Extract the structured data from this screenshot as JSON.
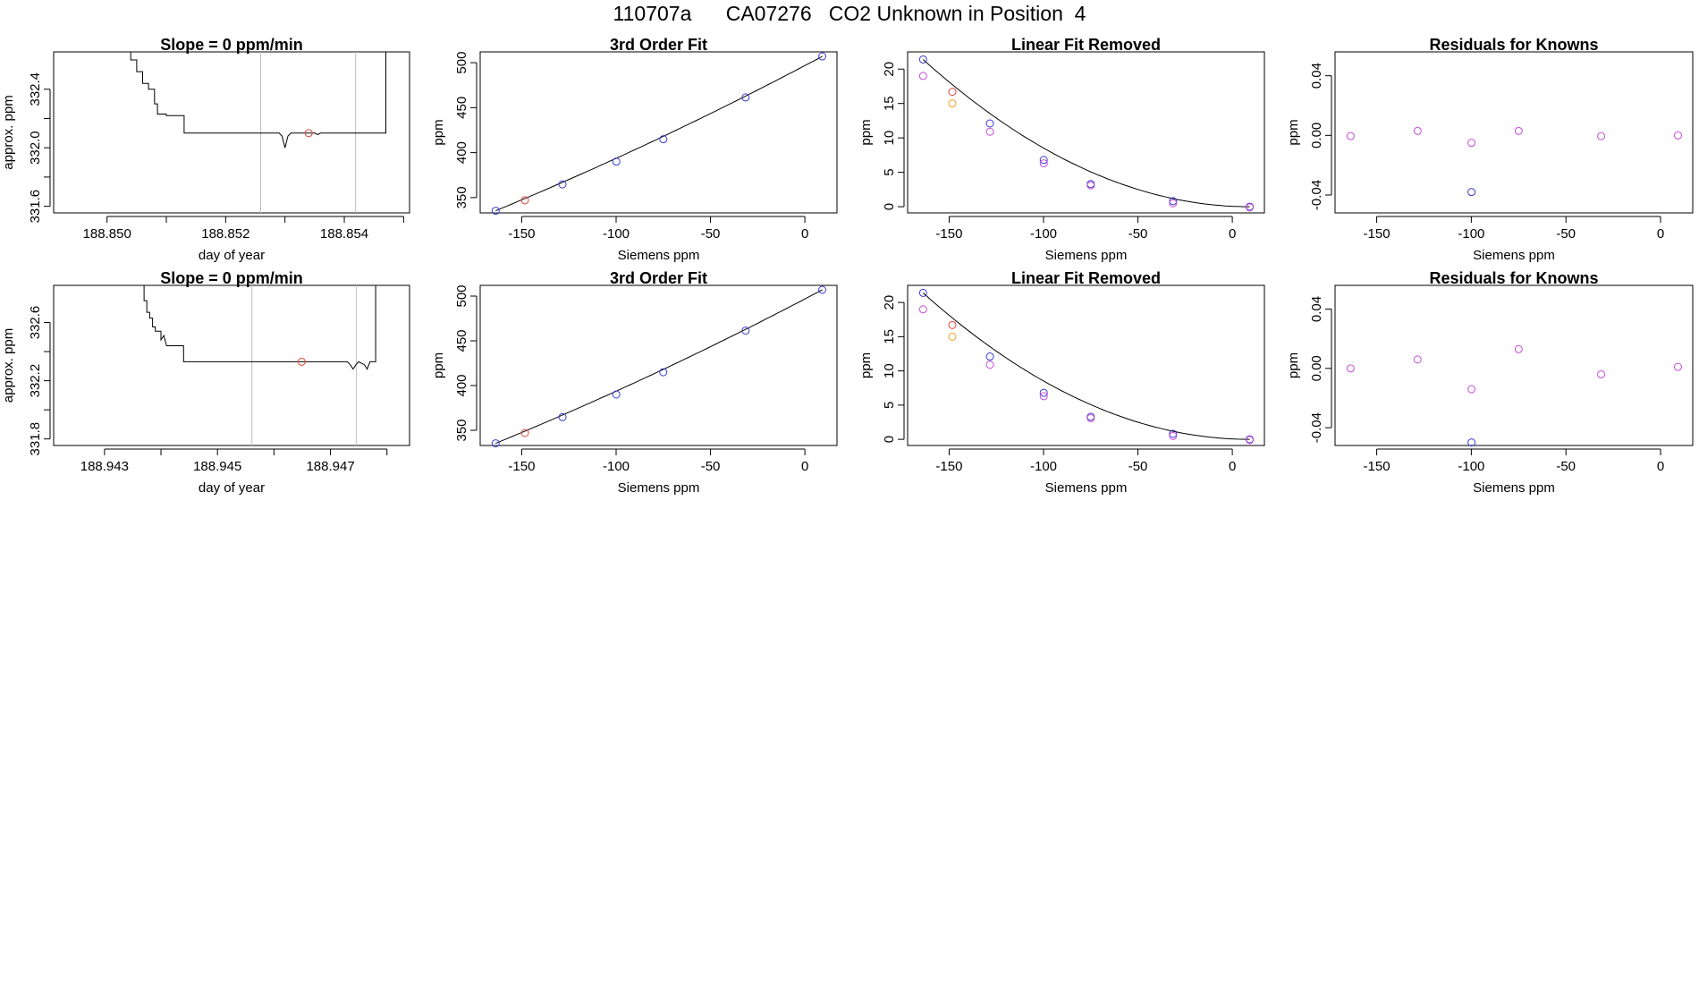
{
  "title": "110707a      CA07276   CO2 Unknown in Position  4",
  "chart_data": [
    {
      "id": "r1-timeseries",
      "type": "line",
      "title": "Slope =  0  ppm/min",
      "xlabel": "day of year",
      "ylabel": "approx. ppm",
      "xlim": [
        188.8491,
        188.8551
      ],
      "ylim": [
        331.555,
        332.655
      ],
      "xticks": [
        188.85,
        188.851,
        188.852,
        188.853,
        188.854,
        188.855
      ],
      "xtick_labels": [
        "188.850",
        "",
        "188.852",
        "",
        "188.854",
        ""
      ],
      "yticks": [
        331.6,
        331.8,
        332.0,
        332.2,
        332.4
      ],
      "ytick_labels": [
        "331.6",
        "",
        "332.0",
        "",
        "332.4"
      ],
      "vlines": [
        188.85259,
        188.85419
      ],
      "trace": [
        [
          188.8504,
          332.7
        ],
        [
          188.8504,
          332.6
        ],
        [
          188.8505,
          332.6
        ],
        [
          188.8505,
          332.52
        ],
        [
          188.8506,
          332.52
        ],
        [
          188.8506,
          332.44
        ],
        [
          188.8507,
          332.44
        ],
        [
          188.8507,
          332.4
        ],
        [
          188.8508,
          332.4
        ],
        [
          188.8508,
          332.3
        ],
        [
          188.85085,
          332.3
        ],
        [
          188.85085,
          332.23
        ],
        [
          188.851,
          332.23
        ],
        [
          188.851,
          332.22
        ],
        [
          188.8513,
          332.22
        ],
        [
          188.8513,
          332.1
        ],
        [
          188.8529,
          332.1
        ],
        [
          188.85295,
          332.08
        ],
        [
          188.853,
          332.0
        ],
        [
          188.85305,
          332.08
        ],
        [
          188.8531,
          332.1
        ],
        [
          188.8535,
          332.1
        ],
        [
          188.85355,
          332.09
        ],
        [
          188.8536,
          332.1
        ],
        [
          188.8547,
          332.1
        ],
        [
          188.8547,
          332.7
        ]
      ],
      "points": [
        {
          "x": 188.8534,
          "y": 332.1,
          "color": "#e0453a"
        }
      ]
    },
    {
      "id": "r1-fit",
      "type": "scatter",
      "title": "3rd Order Fit",
      "xlabel": "Siemens ppm",
      "ylabel": "ppm",
      "xlim": [
        -172,
        17
      ],
      "ylim": [
        333,
        512
      ],
      "xticks": [
        -150,
        -100,
        -50,
        0
      ],
      "xtick_labels": [
        "-150",
        "-100",
        "-50",
        "0"
      ],
      "yticks": [
        350,
        400,
        450,
        500
      ],
      "ytick_labels": [
        "350",
        "400",
        "450",
        "500"
      ],
      "curve": "fit3",
      "points": [
        {
          "x": -163.8,
          "y": 335.4,
          "color": "#3a3ad6"
        },
        {
          "x": -148.3,
          "y": 347.0,
          "color": "#e0453a"
        },
        {
          "x": -128.4,
          "y": 364.7,
          "color": "#3a3ad6"
        },
        {
          "x": -99.9,
          "y": 390.0,
          "color": "#3a3ad6"
        },
        {
          "x": -75.0,
          "y": 414.9,
          "color": "#3a3ad6"
        },
        {
          "x": -31.4,
          "y": 461.4,
          "color": "#3a3ad6"
        },
        {
          "x": 9.2,
          "y": 507.0,
          "color": "#3a3ad6"
        }
      ]
    },
    {
      "id": "r1-linear-removed",
      "type": "scatter",
      "title": "Linear Fit Removed",
      "xlabel": "Siemens ppm",
      "ylabel": "ppm",
      "xlim": [
        -172,
        17
      ],
      "ylim": [
        -0.9,
        22.5
      ],
      "xticks": [
        -150,
        -100,
        -50,
        0
      ],
      "xtick_labels": [
        "-150",
        "-100",
        "-50",
        "0"
      ],
      "yticks": [
        0,
        5,
        10,
        15,
        20
      ],
      "ytick_labels": [
        "0",
        "5",
        "10",
        "15",
        "20"
      ],
      "curve": "parab",
      "points": [
        {
          "x": -163.8,
          "y": 21.4,
          "color": "#3a3ad6"
        },
        {
          "x": -163.8,
          "y": 19.0,
          "color": "#c84bd9"
        },
        {
          "x": -148.3,
          "y": 16.7,
          "color": "#e0453a"
        },
        {
          "x": -148.3,
          "y": 15.0,
          "color": "#f0a020"
        },
        {
          "x": -128.4,
          "y": 12.1,
          "color": "#3a3ad6"
        },
        {
          "x": -128.4,
          "y": 10.9,
          "color": "#c84bd9"
        },
        {
          "x": -99.9,
          "y": 6.8,
          "color": "#3a3ad6"
        },
        {
          "x": -99.9,
          "y": 6.3,
          "color": "#c84bd9"
        },
        {
          "x": -75.0,
          "y": 3.3,
          "color": "#3a3ad6"
        },
        {
          "x": -75.0,
          "y": 3.1,
          "color": "#c84bd9"
        },
        {
          "x": -31.4,
          "y": 0.8,
          "color": "#3a3ad6"
        },
        {
          "x": -31.4,
          "y": 0.5,
          "color": "#c84bd9"
        },
        {
          "x": 9.2,
          "y": 0.0,
          "color": "#3a3ad6"
        },
        {
          "x": 9.2,
          "y": -0.1,
          "color": "#c84bd9"
        }
      ]
    },
    {
      "id": "r1-residuals",
      "type": "scatter",
      "title": "Residuals for Knowns",
      "xlabel": "Siemens ppm",
      "ylabel": "ppm",
      "xlim": [
        -172,
        17
      ],
      "ylim": [
        -0.052,
        0.056
      ],
      "xticks": [
        -150,
        -100,
        -50,
        0
      ],
      "xtick_labels": [
        "-150",
        "-100",
        "-50",
        "0"
      ],
      "yticks": [
        -0.04,
        0.0,
        0.04
      ],
      "ytick_labels": [
        "-0.04",
        "0.00",
        "0.04"
      ],
      "points": [
        {
          "x": -163.8,
          "y": -0.0005,
          "color": "#c84bd9"
        },
        {
          "x": -128.4,
          "y": 0.003,
          "color": "#c84bd9"
        },
        {
          "x": -99.9,
          "y": -0.005,
          "color": "#c84bd9"
        },
        {
          "x": -99.9,
          "y": -0.038,
          "color": "#3a3ad6"
        },
        {
          "x": -75.0,
          "y": 0.003,
          "color": "#c84bd9"
        },
        {
          "x": -31.4,
          "y": -0.0005,
          "color": "#c84bd9"
        },
        {
          "x": 9.2,
          "y": 0.0,
          "color": "#c84bd9"
        }
      ]
    },
    {
      "id": "r2-timeseries",
      "type": "line",
      "title": "Slope =  0  ppm/min",
      "xlabel": "day of year",
      "ylabel": "approx. ppm",
      "xlim": [
        188.9421,
        188.9484
      ],
      "ylim": [
        331.755,
        332.855
      ],
      "xticks": [
        188.943,
        188.944,
        188.945,
        188.946,
        188.947,
        188.948
      ],
      "xtick_labels": [
        "188.943",
        "",
        "188.945",
        "",
        "188.947",
        ""
      ],
      "yticks": [
        331.8,
        332.0,
        332.2,
        332.4,
        332.6
      ],
      "ytick_labels": [
        "331.8",
        "",
        "332.2",
        "",
        "332.6"
      ],
      "vlines": [
        188.94561,
        188.94746
      ],
      "trace": [
        [
          188.9437,
          332.9
        ],
        [
          188.9437,
          332.75
        ],
        [
          188.94375,
          332.75
        ],
        [
          188.94375,
          332.67
        ],
        [
          188.9438,
          332.67
        ],
        [
          188.9438,
          332.63
        ],
        [
          188.94385,
          332.63
        ],
        [
          188.94385,
          332.57
        ],
        [
          188.9439,
          332.57
        ],
        [
          188.9439,
          332.54
        ],
        [
          188.944,
          332.54
        ],
        [
          188.944,
          332.48
        ],
        [
          188.94405,
          332.51
        ],
        [
          188.9441,
          332.44
        ],
        [
          188.9444,
          332.44
        ],
        [
          188.9444,
          332.33
        ],
        [
          188.9473,
          332.33
        ],
        [
          188.94735,
          332.31
        ],
        [
          188.9474,
          332.28
        ],
        [
          188.94745,
          332.31
        ],
        [
          188.9475,
          332.33
        ],
        [
          188.9476,
          332.31
        ],
        [
          188.94765,
          332.28
        ],
        [
          188.9477,
          332.33
        ],
        [
          188.9478,
          332.33
        ],
        [
          188.9478,
          332.9
        ]
      ],
      "points": [
        {
          "x": 188.94649,
          "y": 332.33,
          "color": "#e0453a"
        }
      ]
    },
    {
      "id": "r2-fit",
      "type": "scatter",
      "title": "3rd Order Fit",
      "xlabel": "Siemens ppm",
      "ylabel": "ppm",
      "xlim": [
        -172,
        17
      ],
      "ylim": [
        333,
        512
      ],
      "xticks": [
        -150,
        -100,
        -50,
        0
      ],
      "xtick_labels": [
        "-150",
        "-100",
        "-50",
        "0"
      ],
      "yticks": [
        350,
        400,
        450,
        500
      ],
      "ytick_labels": [
        "350",
        "400",
        "450",
        "500"
      ],
      "curve": "fit3",
      "points": [
        {
          "x": -163.8,
          "y": 335.4,
          "color": "#3a3ad6"
        },
        {
          "x": -148.3,
          "y": 347.0,
          "color": "#e0453a"
        },
        {
          "x": -128.4,
          "y": 364.7,
          "color": "#3a3ad6"
        },
        {
          "x": -99.9,
          "y": 390.0,
          "color": "#3a3ad6"
        },
        {
          "x": -75.0,
          "y": 414.9,
          "color": "#3a3ad6"
        },
        {
          "x": -31.4,
          "y": 461.4,
          "color": "#3a3ad6"
        },
        {
          "x": 9.2,
          "y": 507.0,
          "color": "#3a3ad6"
        }
      ]
    },
    {
      "id": "r2-linear-removed",
      "type": "scatter",
      "title": "Linear Fit Removed",
      "xlabel": "Siemens ppm",
      "ylabel": "ppm",
      "xlim": [
        -172,
        17
      ],
      "ylim": [
        -0.9,
        22.5
      ],
      "xticks": [
        -150,
        -100,
        -50,
        0
      ],
      "xtick_labels": [
        "-150",
        "-100",
        "-50",
        "0"
      ],
      "yticks": [
        0,
        5,
        10,
        15,
        20
      ],
      "ytick_labels": [
        "0",
        "5",
        "10",
        "15",
        "20"
      ],
      "curve": "parab",
      "points": [
        {
          "x": -163.8,
          "y": 21.4,
          "color": "#3a3ad6"
        },
        {
          "x": -163.8,
          "y": 19.0,
          "color": "#c84bd9"
        },
        {
          "x": -148.3,
          "y": 16.7,
          "color": "#e0453a"
        },
        {
          "x": -148.3,
          "y": 15.0,
          "color": "#f0a020"
        },
        {
          "x": -128.4,
          "y": 12.1,
          "color": "#3a3ad6"
        },
        {
          "x": -128.4,
          "y": 10.9,
          "color": "#c84bd9"
        },
        {
          "x": -99.9,
          "y": 6.8,
          "color": "#3a3ad6"
        },
        {
          "x": -99.9,
          "y": 6.3,
          "color": "#c84bd9"
        },
        {
          "x": -75.0,
          "y": 3.3,
          "color": "#3a3ad6"
        },
        {
          "x": -75.0,
          "y": 3.1,
          "color": "#c84bd9"
        },
        {
          "x": -31.4,
          "y": 0.8,
          "color": "#3a3ad6"
        },
        {
          "x": -31.4,
          "y": 0.5,
          "color": "#c84bd9"
        },
        {
          "x": 9.2,
          "y": 0.0,
          "color": "#3a3ad6"
        },
        {
          "x": 9.2,
          "y": -0.1,
          "color": "#c84bd9"
        }
      ]
    },
    {
      "id": "r2-residuals",
      "type": "scatter",
      "title": "Residuals for Knowns",
      "xlabel": "Siemens ppm",
      "ylabel": "ppm",
      "xlim": [
        -172,
        17
      ],
      "ylim": [
        -0.052,
        0.056
      ],
      "xticks": [
        -150,
        -100,
        -50,
        0
      ],
      "xtick_labels": [
        "-150",
        "-100",
        "-50",
        "0"
      ],
      "yticks": [
        -0.04,
        0.0,
        0.04
      ],
      "ytick_labels": [
        "-0.04",
        "0.00",
        "0.04"
      ],
      "points": [
        {
          "x": -163.8,
          "y": 0.0,
          "color": "#c84bd9"
        },
        {
          "x": -128.4,
          "y": 0.006,
          "color": "#c84bd9"
        },
        {
          "x": -99.9,
          "y": -0.014,
          "color": "#c84bd9"
        },
        {
          "x": -99.9,
          "y": -0.05,
          "color": "#3a3ad6"
        },
        {
          "x": -75.0,
          "y": 0.013,
          "color": "#c84bd9"
        },
        {
          "x": -31.4,
          "y": -0.004,
          "color": "#c84bd9"
        },
        {
          "x": 9.2,
          "y": 0.001,
          "color": "#c84bd9"
        }
      ]
    }
  ]
}
